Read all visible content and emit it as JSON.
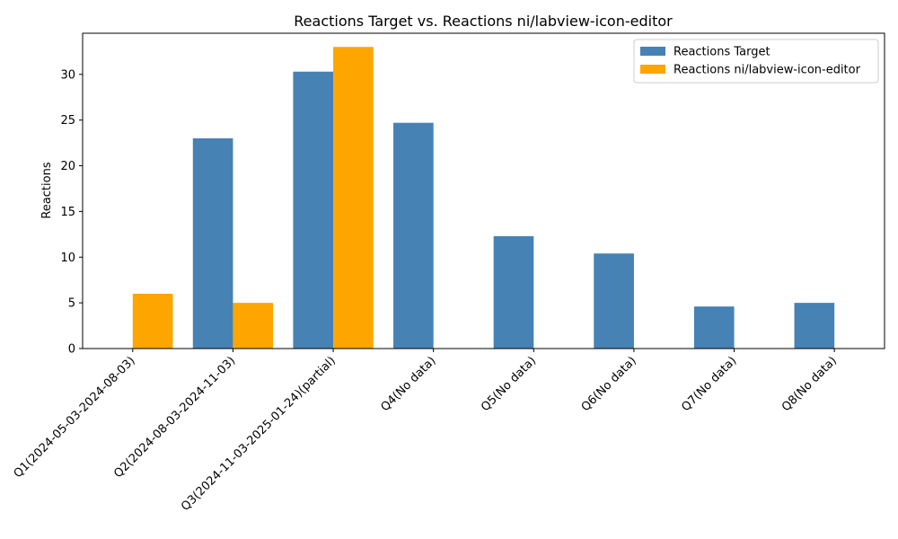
{
  "chart_data": {
    "type": "bar",
    "title": "Reactions Target vs. Reactions ni/labview-icon-editor",
    "xlabel": "",
    "ylabel": "Reactions",
    "ylim": [
      0,
      34.5
    ],
    "yticks": [
      0,
      5,
      10,
      15,
      20,
      25,
      30
    ],
    "grid": false,
    "legend_position": "top-right",
    "categories": [
      "Q1(2024-05-03-2024-08-03)",
      "Q2(2024-08-03-2024-11-03)",
      "Q3(2024-11-03-2025-01-24)(partial)",
      "Q4(No data)",
      "Q5(No data)",
      "Q6(No data)",
      "Q7(No data)",
      "Q8(No data)"
    ],
    "series": [
      {
        "name": "Reactions Target",
        "color": "#4682b4",
        "values": [
          0,
          23,
          30.3,
          24.7,
          12.3,
          10.4,
          4.6,
          5.0
        ]
      },
      {
        "name": "Reactions ni/labview-icon-editor",
        "color": "#ffa500",
        "values": [
          6,
          5,
          33,
          0,
          0,
          0,
          0,
          0
        ]
      }
    ]
  }
}
